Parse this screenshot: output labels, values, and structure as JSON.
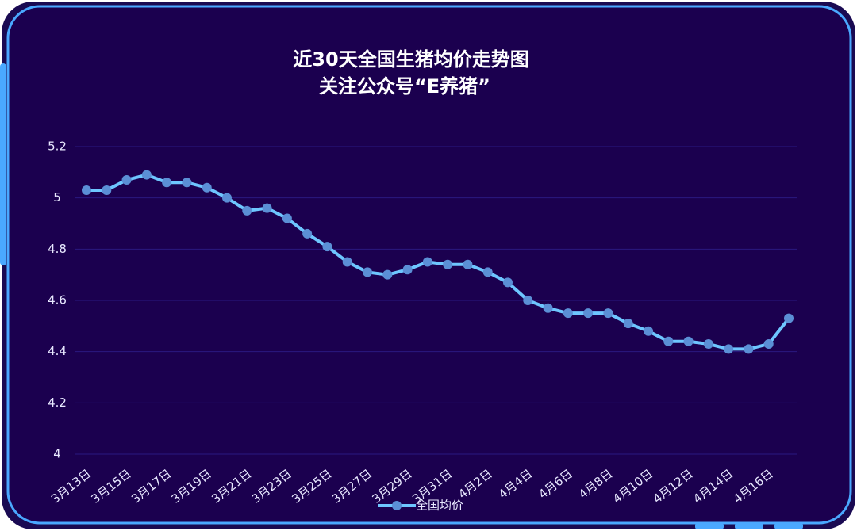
{
  "chart_data": {
    "type": "line",
    "title": "近30天全国生猪均价走势图",
    "subtitle": "关注公众号“E养猪”",
    "categories": [
      "3月13日",
      null,
      "3月15日",
      null,
      "3月17日",
      null,
      "3月19日",
      null,
      "3月21日",
      null,
      "3月23日",
      null,
      "3月25日",
      null,
      "3月27日",
      null,
      "3月29日",
      null,
      "3月31日",
      null,
      "4月2日",
      null,
      "4月4日",
      null,
      "4月6日",
      null,
      "4月8日",
      null,
      "4月10日",
      null,
      "4月12日",
      null,
      "4月14日",
      null,
      "4月16日",
      null
    ],
    "series": [
      {
        "name": "全国均价",
        "color": "#6ec6ff",
        "marker_color": "#5b8fd6",
        "values": [
          5.03,
          5.03,
          5.07,
          5.09,
          5.06,
          5.06,
          5.04,
          5.0,
          4.95,
          4.96,
          4.92,
          4.86,
          4.81,
          4.75,
          4.71,
          4.7,
          4.72,
          4.75,
          4.74,
          4.74,
          4.71,
          4.67,
          4.6,
          4.57,
          4.55,
          4.55,
          4.55,
          4.51,
          4.48,
          4.44,
          4.44,
          4.43,
          4.41,
          4.41,
          4.43,
          4.53
        ]
      }
    ],
    "ylim": [
      4,
      5.2
    ],
    "yticks": [
      4,
      4.2,
      4.4,
      4.6,
      4.8,
      5,
      5.2
    ],
    "grid": true,
    "legend": "bottom"
  }
}
